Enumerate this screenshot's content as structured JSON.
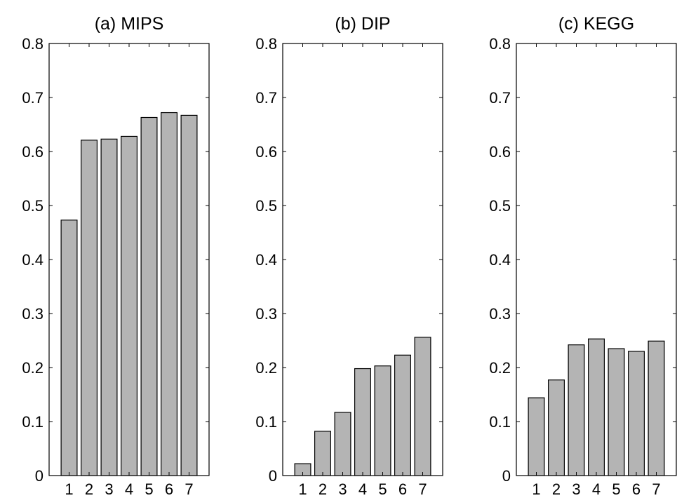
{
  "chart_data": [
    {
      "type": "bar",
      "title": "(a) MIPS",
      "categories": [
        "1",
        "2",
        "3",
        "4",
        "5",
        "6",
        "7"
      ],
      "values": [
        0.473,
        0.621,
        0.623,
        0.628,
        0.663,
        0.672,
        0.667
      ],
      "ylim": [
        0,
        0.8
      ],
      "yticks": [
        "0",
        "0.1",
        "0.2",
        "0.3",
        "0.4",
        "0.5",
        "0.6",
        "0.7",
        "0.8"
      ],
      "grid": false,
      "bar_color": "#b4b4b4"
    },
    {
      "type": "bar",
      "title": "(b) DIP",
      "categories": [
        "1",
        "2",
        "3",
        "4",
        "5",
        "6",
        "7"
      ],
      "values": [
        0.022,
        0.082,
        0.117,
        0.198,
        0.203,
        0.223,
        0.256
      ],
      "ylim": [
        0,
        0.8
      ],
      "yticks": [
        "0",
        "0.1",
        "0.2",
        "0.3",
        "0.4",
        "0.5",
        "0.6",
        "0.7",
        "0.8"
      ],
      "grid": false,
      "bar_color": "#b4b4b4"
    },
    {
      "type": "bar",
      "title": "(c) KEGG",
      "categories": [
        "1",
        "2",
        "3",
        "4",
        "5",
        "6",
        "7"
      ],
      "values": [
        0.144,
        0.177,
        0.242,
        0.253,
        0.235,
        0.23,
        0.249
      ],
      "ylim": [
        0,
        0.8
      ],
      "yticks": [
        "0",
        "0.1",
        "0.2",
        "0.3",
        "0.4",
        "0.5",
        "0.6",
        "0.7",
        "0.8"
      ],
      "grid": false,
      "bar_color": "#b4b4b4"
    }
  ]
}
